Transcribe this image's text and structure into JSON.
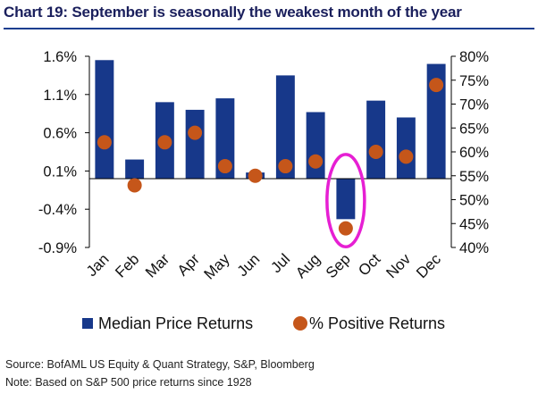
{
  "title": "Chart 19: September is seasonally the weakest month of the year",
  "source": "Source: BofAML US Equity & Quant Strategy, S&P, Bloomberg",
  "note": "Note: Based on S&P 500 price returns since 1928",
  "colors": {
    "bar": "#17388a",
    "dot": "#c5561a",
    "highlight": "#e61fd3",
    "title": "#1a1f5c",
    "rule": "#1a3e8f"
  },
  "chart_data": {
    "type": "bar",
    "categories": [
      "Jan",
      "Feb",
      "Mar",
      "Apr",
      "May",
      "Jun",
      "Jul",
      "Aug",
      "Sep",
      "Oct",
      "Nov",
      "Dec"
    ],
    "series": [
      {
        "name": "Median Price Returns",
        "type": "bar",
        "axis": "left",
        "values": [
          1.55,
          0.25,
          1.0,
          0.9,
          1.05,
          0.08,
          1.35,
          0.87,
          -0.53,
          1.02,
          0.8,
          1.5
        ]
      },
      {
        "name": "% Positive Returns",
        "type": "scatter",
        "axis": "right",
        "values": [
          62,
          53,
          62,
          64,
          57,
          55,
          57,
          58,
          44,
          60,
          59,
          74
        ]
      }
    ],
    "y_left": {
      "lim": [
        -0.9,
        1.6
      ],
      "ticks": [
        1.6,
        1.1,
        0.6,
        0.1,
        -0.4,
        -0.9
      ],
      "tick_labels": [
        "1.6%",
        "1.1%",
        "0.6%",
        "0.1%",
        "-0.4%",
        "-0.9%"
      ]
    },
    "y_right": {
      "lim": [
        40,
        80
      ],
      "ticks": [
        80,
        75,
        70,
        65,
        60,
        55,
        50,
        45,
        40
      ],
      "tick_labels": [
        "80%",
        "75%",
        "70%",
        "65%",
        "60%",
        "55%",
        "50%",
        "45%",
        "40%"
      ]
    },
    "highlight_category": "Sep",
    "legend_position": "bottom",
    "grid": false
  }
}
